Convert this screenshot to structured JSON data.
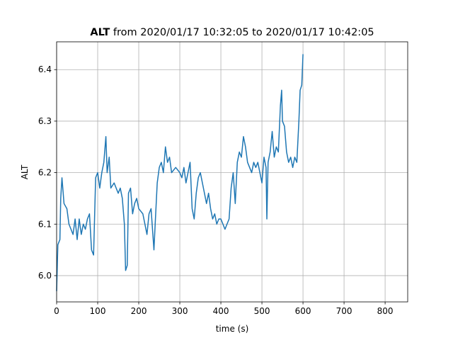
{
  "chart_data": {
    "type": "line",
    "title": {
      "bold": "ALT",
      "text": "from 2020/01/17 10:32:05 to 2020/01/17 10:42:05"
    },
    "x_label": "time (s)",
    "y_label": "ALT",
    "x": [
      0,
      3,
      8,
      10,
      13,
      18,
      25,
      30,
      35,
      40,
      45,
      50,
      55,
      60,
      65,
      70,
      75,
      80,
      85,
      90,
      95,
      100,
      105,
      110,
      115,
      120,
      123,
      128,
      132,
      140,
      150,
      155,
      160,
      165,
      168,
      172,
      175,
      180,
      185,
      190,
      195,
      200,
      210,
      215,
      220,
      225,
      230,
      237,
      240,
      245,
      250,
      255,
      260,
      265,
      270,
      275,
      280,
      290,
      300,
      305,
      310,
      315,
      320,
      325,
      330,
      335,
      340,
      345,
      350,
      355,
      360,
      365,
      370,
      375,
      380,
      385,
      390,
      395,
      400,
      405,
      410,
      415,
      420,
      425,
      430,
      435,
      440,
      445,
      450,
      455,
      460,
      465,
      470,
      475,
      480,
      485,
      490,
      495,
      500,
      505,
      510,
      512,
      515,
      520,
      525,
      530,
      535,
      540,
      545,
      548,
      550,
      555,
      560,
      565,
      570,
      575,
      580,
      585,
      590,
      593,
      597,
      600
    ],
    "series": [
      {
        "name": "ALT",
        "color": "#1f77b4",
        "values": [
          5.97,
          6.06,
          6.07,
          6.15,
          6.19,
          6.14,
          6.13,
          6.1,
          6.09,
          6.08,
          6.11,
          6.07,
          6.11,
          6.08,
          6.1,
          6.09,
          6.11,
          6.12,
          6.05,
          6.04,
          6.19,
          6.2,
          6.17,
          6.2,
          6.22,
          6.27,
          6.2,
          6.23,
          6.17,
          6.18,
          6.16,
          6.17,
          6.15,
          6.1,
          6.01,
          6.02,
          6.16,
          6.17,
          6.12,
          6.14,
          6.15,
          6.13,
          6.12,
          6.1,
          6.08,
          6.12,
          6.13,
          6.05,
          6.1,
          6.18,
          6.21,
          6.22,
          6.2,
          6.25,
          6.22,
          6.23,
          6.2,
          6.21,
          6.2,
          6.19,
          6.21,
          6.18,
          6.2,
          6.22,
          6.13,
          6.11,
          6.16,
          6.19,
          6.2,
          6.18,
          6.16,
          6.14,
          6.16,
          6.13,
          6.11,
          6.12,
          6.1,
          6.11,
          6.11,
          6.1,
          6.09,
          6.1,
          6.11,
          6.17,
          6.2,
          6.14,
          6.22,
          6.24,
          6.23,
          6.27,
          6.25,
          6.22,
          6.21,
          6.2,
          6.22,
          6.21,
          6.22,
          6.2,
          6.18,
          6.23,
          6.21,
          6.11,
          6.22,
          6.24,
          6.28,
          6.23,
          6.25,
          6.24,
          6.33,
          6.36,
          6.3,
          6.29,
          6.24,
          6.22,
          6.23,
          6.21,
          6.23,
          6.22,
          6.3,
          6.36,
          6.37,
          6.43
        ]
      }
    ],
    "xlim": [
      0,
      855
    ],
    "ylim": [
      5.949,
      6.454
    ],
    "xticks": [
      0,
      100,
      200,
      300,
      400,
      500,
      600,
      700,
      800
    ],
    "yticks": [
      {
        "value": 6,
        "label": "6.0"
      },
      6.1,
      6.2,
      6.3,
      6.4
    ],
    "grid": true
  }
}
